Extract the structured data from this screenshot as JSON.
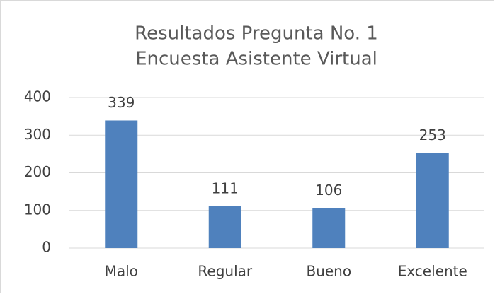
{
  "chart_data": {
    "type": "bar",
    "title": [
      "Resultados Pregunta No. 1",
      "Encuesta Asistente Virtual"
    ],
    "categories": [
      "Malo",
      "Regular",
      "Bueno",
      "Excelente"
    ],
    "values": [
      339,
      111,
      106,
      253
    ],
    "color": "#4f81bd",
    "ylim": [
      0,
      400
    ],
    "yticks": [
      0,
      100,
      200,
      300,
      400
    ],
    "grid": true,
    "data_labels": true
  }
}
